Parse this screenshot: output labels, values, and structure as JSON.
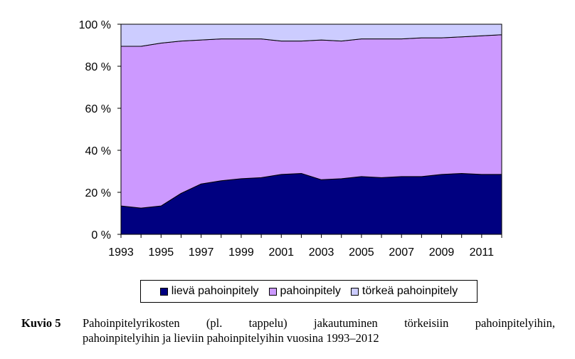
{
  "chart_data": {
    "type": "area",
    "stacked": true,
    "normalized_percent": true,
    "x": [
      1993,
      1994,
      1995,
      1996,
      1997,
      1998,
      1999,
      2000,
      2001,
      2002,
      2003,
      2004,
      2005,
      2006,
      2007,
      2008,
      2009,
      2010,
      2011,
      2012
    ],
    "x_tick_labels": [
      "1993",
      "1995",
      "1997",
      "1999",
      "2001",
      "2003",
      "2005",
      "2007",
      "2009",
      "2011"
    ],
    "y_tick_labels": [
      "0 %",
      "20 %",
      "40 %",
      "60 %",
      "80 %",
      "100 %"
    ],
    "ylim": [
      0,
      100
    ],
    "grid": false,
    "legend_position": "bottom",
    "series": [
      {
        "name": "lievä pahoinpitely",
        "color": "#000080",
        "values": [
          13.5,
          12.5,
          13.5,
          19.5,
          24,
          25.5,
          26.5,
          27,
          28.5,
          29,
          26,
          26.5,
          27.5,
          27,
          27.5,
          27.5,
          28.5,
          29,
          28.5,
          28.5
        ]
      },
      {
        "name": "pahoinpitely",
        "color": "#cc99ff",
        "values": [
          76,
          77,
          77.5,
          72.5,
          68.5,
          67.5,
          66.5,
          66,
          63.5,
          63,
          66.5,
          65.5,
          65.5,
          66,
          65.5,
          66,
          65,
          65,
          66,
          66.5
        ]
      },
      {
        "name": "törkeä pahoinpitely",
        "color": "#ccccff",
        "values": [
          10.5,
          10.5,
          9,
          8,
          7.5,
          7,
          7,
          7,
          8,
          8,
          7.5,
          8,
          7,
          7,
          7,
          6.5,
          6.5,
          6,
          5.5,
          5
        ]
      }
    ]
  },
  "caption": {
    "label": "Kuvio 5",
    "line1": "Pahoinpitelyrikosten (pl. tappelu) jakautuminen törkeisiin pahoinpitelyihin,",
    "line2": "pahoinpitelyihin ja lieviin pahoinpitelyihin vuosina 1993–2012"
  }
}
